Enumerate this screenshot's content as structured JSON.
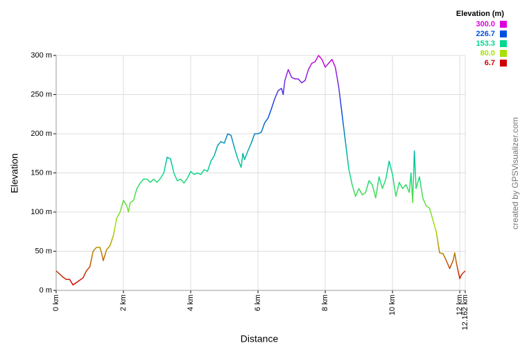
{
  "chart_data": {
    "type": "line",
    "x_label": "Distance",
    "y_label": "Elevation",
    "credit": "created by GPSVisualizer.com",
    "grid": true,
    "xlim": [
      0,
      12.162
    ],
    "ylim": [
      0,
      300
    ],
    "xticks": [
      {
        "value": 0,
        "label": "0 km"
      },
      {
        "value": 2,
        "label": "2 km"
      },
      {
        "value": 4,
        "label": "4 km"
      },
      {
        "value": 6,
        "label": "6 km"
      },
      {
        "value": 8,
        "label": "8 km"
      },
      {
        "value": 10,
        "label": "10 km"
      },
      {
        "value": 12,
        "label": "12 km"
      },
      {
        "value": 12.162,
        "label": "12.162 km"
      }
    ],
    "yticks": [
      {
        "value": 0,
        "label": "0 m"
      },
      {
        "value": 50,
        "label": "50 m"
      },
      {
        "value": 100,
        "label": "100 m"
      },
      {
        "value": 150,
        "label": "150 m"
      },
      {
        "value": 200,
        "label": "200 m"
      },
      {
        "value": 250,
        "label": "250 m"
      },
      {
        "value": 300,
        "label": "300 m"
      }
    ],
    "color_scale": {
      "title": "Elevation (m)",
      "stops": [
        {
          "value": 300,
          "label": "300.0",
          "color": "#dd00dd"
        },
        {
          "value": 226.7,
          "label": "226.7",
          "color": "#0050e0"
        },
        {
          "value": 153.3,
          "label": "153.3",
          "color": "#00d890"
        },
        {
          "value": 80,
          "label": "80.0",
          "color": "#a8e000"
        },
        {
          "value": 6.7,
          "label": "6.7",
          "color": "#d00000"
        }
      ]
    },
    "x": [
      0,
      0.2,
      0.3,
      0.4,
      0.5,
      0.6,
      0.8,
      0.9,
      1.0,
      1.1,
      1.2,
      1.3,
      1.35,
      1.4,
      1.5,
      1.6,
      1.7,
      1.8,
      1.9,
      2.0,
      2.1,
      2.15,
      2.2,
      2.3,
      2.4,
      2.5,
      2.6,
      2.7,
      2.8,
      2.9,
      3.0,
      3.1,
      3.2,
      3.3,
      3.4,
      3.5,
      3.6,
      3.7,
      3.8,
      3.9,
      4.0,
      4.1,
      4.2,
      4.3,
      4.4,
      4.5,
      4.6,
      4.7,
      4.8,
      4.9,
      5.0,
      5.1,
      5.2,
      5.3,
      5.4,
      5.5,
      5.55,
      5.6,
      5.7,
      5.8,
      5.9,
      6.0,
      6.1,
      6.2,
      6.3,
      6.4,
      6.5,
      6.6,
      6.7,
      6.75,
      6.8,
      6.9,
      7.0,
      7.1,
      7.2,
      7.3,
      7.4,
      7.5,
      7.6,
      7.7,
      7.8,
      7.9,
      8.0,
      8.1,
      8.2,
      8.3,
      8.4,
      8.5,
      8.6,
      8.7,
      8.8,
      8.9,
      9.0,
      9.1,
      9.2,
      9.3,
      9.4,
      9.5,
      9.6,
      9.7,
      9.8,
      9.9,
      10.0,
      10.1,
      10.2,
      10.3,
      10.4,
      10.5,
      10.55,
      10.6,
      10.65,
      10.7,
      10.8,
      10.9,
      11.0,
      11.1,
      11.2,
      11.3,
      11.4,
      11.5,
      11.6,
      11.7,
      11.8,
      11.85,
      11.9,
      12.0,
      12.05,
      12.162
    ],
    "series": [
      {
        "values": [
          25,
          17,
          14,
          14,
          7,
          10,
          16,
          25,
          30,
          50,
          55,
          55,
          48,
          38,
          52,
          57,
          70,
          92,
          100,
          115,
          108,
          100,
          112,
          115,
          130,
          137,
          142,
          142,
          138,
          142,
          138,
          143,
          150,
          170,
          168,
          150,
          140,
          142,
          137,
          143,
          152,
          148,
          150,
          148,
          154,
          152,
          165,
          172,
          185,
          190,
          188,
          200,
          198,
          182,
          168,
          157,
          175,
          167,
          178,
          188,
          200,
          200,
          202,
          214,
          220,
          232,
          245,
          255,
          258,
          250,
          268,
          282,
          272,
          270,
          270,
          265,
          268,
          282,
          290,
          292,
          300,
          295,
          285,
          290,
          295,
          285,
          260,
          225,
          190,
          155,
          135,
          120,
          130,
          122,
          125,
          140,
          135,
          118,
          145,
          130,
          142,
          165,
          148,
          120,
          138,
          130,
          135,
          125,
          150,
          112,
          178,
          130,
          145,
          118,
          108,
          105,
          90,
          75,
          48,
          47,
          38,
          28,
          38,
          48,
          35,
          15,
          20,
          25
        ]
      }
    ]
  }
}
